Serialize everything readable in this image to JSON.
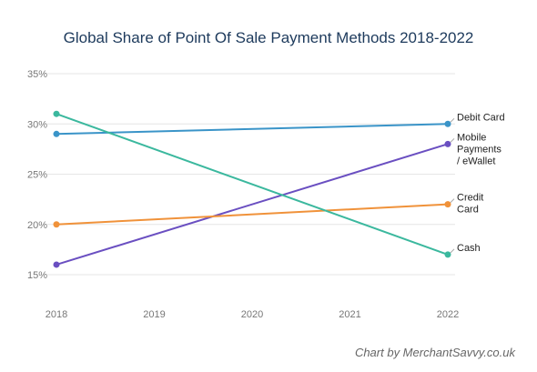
{
  "chart_data": {
    "type": "line",
    "title": "Global Share of Point Of Sale Payment Methods 2018-2022",
    "x": [
      "2018",
      "2019",
      "2020",
      "2021",
      "2022"
    ],
    "xlabel": "",
    "ylabel": "",
    "ylim": [
      15,
      35
    ],
    "yticks": [
      "15%",
      "20%",
      "25%",
      "30%",
      "35%"
    ],
    "grid": true,
    "legend": "end-of-line labels",
    "series": [
      {
        "name": "Debit Card",
        "color": "#3a94c8",
        "x": [
          "2018",
          "2022"
        ],
        "values": [
          29,
          30
        ]
      },
      {
        "name": "Mobile Payments / eWallet",
        "label_lines": [
          "Mobile",
          "Payments",
          "/ eWallet"
        ],
        "color": "#6a4fc1",
        "x": [
          "2018",
          "2022"
        ],
        "values": [
          16,
          28
        ]
      },
      {
        "name": "Credit Card",
        "label_lines": [
          "Credit",
          "Card"
        ],
        "color": "#f0923a",
        "x": [
          "2018",
          "2022"
        ],
        "values": [
          20,
          22
        ]
      },
      {
        "name": "Cash",
        "color": "#3bb89e",
        "x": [
          "2018",
          "2022"
        ],
        "values": [
          31,
          17
        ]
      }
    ]
  },
  "credit": "Chart by MerchantSavvy.co.uk"
}
